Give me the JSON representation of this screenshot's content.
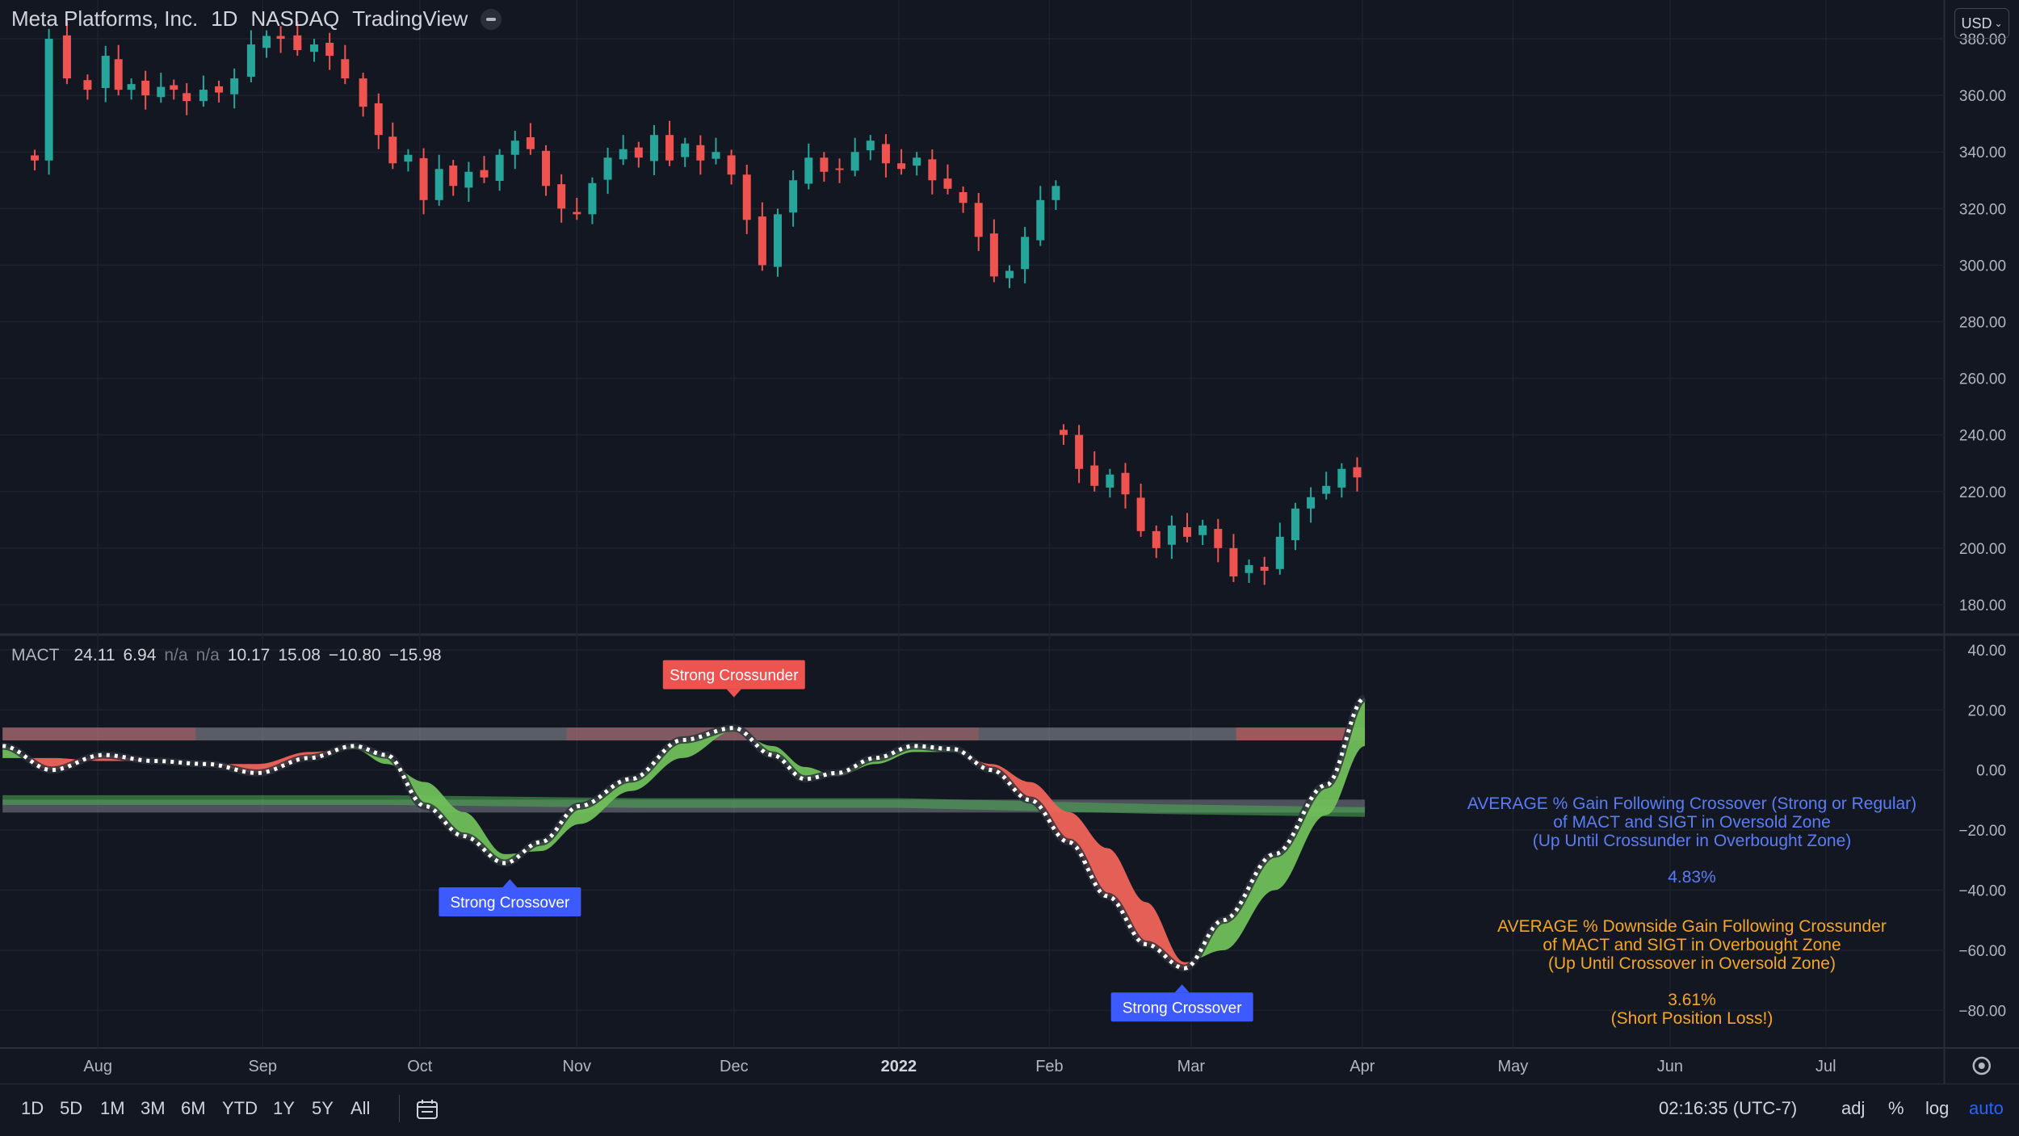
{
  "header": {
    "symbol": "Meta Platforms, Inc.",
    "interval": "1D",
    "exchange": "NASDAQ",
    "source": "TradingView"
  },
  "currency_label": "USD",
  "indicator": {
    "name": "MACT",
    "v1": "24.11",
    "v2": "6.94",
    "v3": "n/a",
    "v4": "n/a",
    "v5": "10.17",
    "v6": "15.08",
    "v7": "−10.80",
    "v8": "−15.98"
  },
  "stats": {
    "gain_title_1": "AVERAGE % Gain Following Crossover (Strong or Regular)",
    "gain_title_2": "of MACT and SIGT in Oversold Zone",
    "gain_title_3": "(Up Until Crossunder in Overbought Zone)",
    "gain_value": "4.83%",
    "loss_title_1": "AVERAGE % Downside Gain Following Crossunder",
    "loss_title_2": "of MACT and SIGT in Overbought Zone",
    "loss_title_3": "(Up Until Crossover in Oversold Zone)",
    "loss_value": "3.61%",
    "loss_note": "(Short Position Loss!)"
  },
  "time_axis": [
    "Aug",
    "Sep",
    "Oct",
    "Nov",
    "Dec",
    "2022",
    "Feb",
    "Mar",
    "Apr",
    "May",
    "Jun",
    "Jul"
  ],
  "bottom_bar": {
    "timeframes": [
      "1D",
      "5D",
      "1M",
      "3M",
      "6M",
      "YTD",
      "1Y",
      "5Y",
      "All"
    ],
    "clock": "02:16:35 (UTC-7)",
    "adj": "adj",
    "pct": "%",
    "log": "log",
    "auto": "auto"
  },
  "colors": {
    "up": "#26a69a",
    "down": "#ef5350",
    "bg": "#131722",
    "green_fill": "#6fbf5a",
    "red_fill": "#ef6358"
  },
  "chart_data": [
    {
      "type": "candlestick",
      "price_axis": [
        "380.00",
        "360.00",
        "340.00",
        "320.00",
        "300.00",
        "280.00",
        "260.00",
        "240.00",
        "220.00",
        "200.00",
        "180.00"
      ],
      "ylim": [
        170,
        392
      ],
      "closes": [
        [
          27,
          337
        ],
        [
          38,
          380
        ],
        [
          52,
          366
        ],
        [
          68,
          362
        ],
        [
          82,
          374
        ],
        [
          92,
          362
        ],
        [
          102,
          364
        ],
        [
          113,
          360
        ],
        [
          125,
          363
        ],
        [
          135,
          362
        ],
        [
          145,
          358
        ],
        [
          158,
          362
        ],
        [
          170,
          361
        ],
        [
          182,
          366
        ],
        [
          195,
          378
        ],
        [
          207,
          381
        ],
        [
          218,
          380
        ],
        [
          231,
          376
        ],
        [
          244,
          378
        ],
        [
          256,
          374
        ],
        [
          268,
          366
        ],
        [
          282,
          356
        ],
        [
          294,
          346
        ],
        [
          305,
          336
        ],
        [
          317,
          339
        ],
        [
          329,
          323
        ],
        [
          341,
          334
        ],
        [
          352,
          328
        ],
        [
          364,
          333
        ],
        [
          376,
          331
        ],
        [
          388,
          339
        ],
        [
          400,
          344
        ],
        [
          412,
          341
        ],
        [
          424,
          328
        ],
        [
          436,
          320
        ],
        [
          448,
          318
        ],
        [
          460,
          329
        ],
        [
          472,
          338
        ],
        [
          484,
          341
        ],
        [
          496,
          338
        ],
        [
          508,
          346
        ],
        [
          520,
          337
        ],
        [
          532,
          343
        ],
        [
          544,
          337
        ],
        [
          556,
          340
        ],
        [
          568,
          332
        ],
        [
          580,
          316
        ],
        [
          592,
          300
        ],
        [
          604,
          318
        ],
        [
          616,
          330
        ],
        [
          628,
          338
        ],
        [
          640,
          333
        ],
        [
          652,
          334
        ],
        [
          664,
          340
        ],
        [
          676,
          344
        ],
        [
          688,
          336
        ],
        [
          700,
          334
        ],
        [
          712,
          338
        ],
        [
          724,
          330
        ],
        [
          736,
          327
        ],
        [
          748,
          322
        ],
        [
          760,
          310
        ],
        [
          772,
          296
        ],
        [
          784,
          298
        ],
        [
          796,
          310
        ],
        [
          808,
          323
        ],
        [
          820,
          328
        ]
      ],
      "closes2": [
        [
          826,
          240
        ],
        [
          838,
          228
        ],
        [
          850,
          222
        ],
        [
          862,
          226
        ],
        [
          874,
          219
        ],
        [
          886,
          206
        ],
        [
          898,
          200
        ],
        [
          910,
          208
        ],
        [
          922,
          204
        ],
        [
          934,
          208
        ],
        [
          946,
          200
        ],
        [
          958,
          190
        ],
        [
          970,
          194
        ],
        [
          982,
          192
        ],
        [
          994,
          204
        ],
        [
          1006,
          214
        ],
        [
          1018,
          218
        ],
        [
          1030,
          222
        ],
        [
          1042,
          228
        ],
        [
          1054,
          225
        ]
      ]
    },
    {
      "type": "line",
      "indicator_axis": [
        "40.00",
        "20.00",
        "0.00",
        "−20.00",
        "−40.00",
        "−60.00",
        "−80.00"
      ],
      "ylim": [
        -92,
        44
      ],
      "overbought_level": 12,
      "oversold_level": -12,
      "series": [
        {
          "values_mact": [
            [
              2,
              8
            ],
            [
              40,
              0
            ],
            [
              80,
              5
            ],
            [
              120,
              3
            ],
            [
              160,
              2
            ],
            [
              200,
              -1
            ],
            [
              240,
              4
            ],
            [
              275,
              8
            ],
            [
              300,
              5
            ],
            [
              330,
              -12
            ],
            [
              360,
              -22
            ],
            [
              392,
              -31
            ],
            [
              420,
              -24
            ],
            [
              450,
              -12
            ],
            [
              490,
              -3
            ],
            [
              530,
              10
            ],
            [
              570,
              14
            ],
            [
              600,
              5
            ],
            [
              625,
              -3
            ],
            [
              650,
              -1
            ],
            [
              680,
              4
            ],
            [
              710,
              8
            ],
            [
              740,
              7
            ],
            [
              770,
              0
            ],
            [
              800,
              -10
            ],
            [
              830,
              -24
            ],
            [
              860,
              -42
            ],
            [
              890,
              -58
            ],
            [
              920,
              -66
            ],
            [
              950,
              -50
            ],
            [
              990,
              -28
            ],
            [
              1030,
              -5
            ],
            [
              1060,
              24
            ]
          ],
          "values_sigt": [
            [
              2,
              4
            ],
            [
              40,
              4
            ],
            [
              80,
              3
            ],
            [
              120,
              3
            ],
            [
              160,
              2
            ],
            [
              200,
              2
            ],
            [
              240,
              6
            ],
            [
              275,
              7
            ],
            [
              300,
              2
            ],
            [
              330,
              -4
            ],
            [
              360,
              -14
            ],
            [
              392,
              -28
            ],
            [
              420,
              -27
            ],
            [
              450,
              -18
            ],
            [
              490,
              -7
            ],
            [
              530,
              4
            ],
            [
              570,
              13
            ],
            [
              600,
              8
            ],
            [
              625,
              1
            ],
            [
              650,
              -2
            ],
            [
              680,
              2
            ],
            [
              710,
              6
            ],
            [
              740,
              6
            ],
            [
              770,
              2
            ],
            [
              800,
              -4
            ],
            [
              830,
              -14
            ],
            [
              860,
              -26
            ],
            [
              890,
              -44
            ],
            [
              920,
              -64
            ],
            [
              950,
              -60
            ],
            [
              990,
              -40
            ],
            [
              1030,
              -15
            ],
            [
              1060,
              8
            ]
          ],
          "values_base": [
            [
              2,
              -10
            ],
            [
              300,
              -10
            ],
            [
              500,
              -11
            ],
            [
              700,
              -11
            ],
            [
              900,
              -13
            ],
            [
              1060,
              -14
            ]
          ]
        }
      ],
      "labels": [
        {
          "text": "Strong Crossunder",
          "x": 570,
          "value": 14,
          "side": "above",
          "kind": "down"
        },
        {
          "text": "Strong Crossover",
          "x": 396,
          "value": -31,
          "side": "below",
          "kind": "up"
        },
        {
          "text": "Strong Crossover",
          "x": 918,
          "value": -66,
          "side": "below",
          "kind": "up"
        }
      ]
    }
  ]
}
